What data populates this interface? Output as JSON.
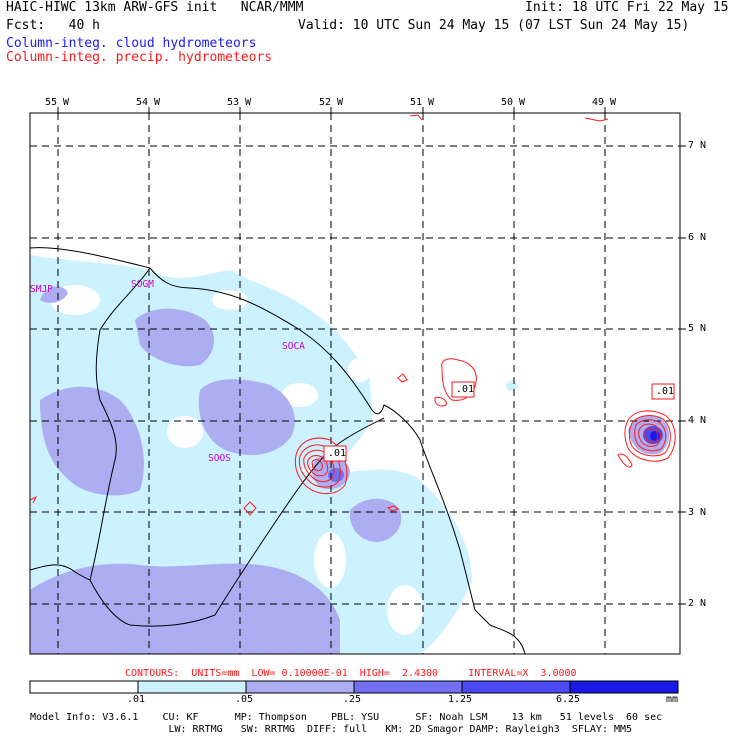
{
  "header": {
    "line1_left": "HAIC-HIWC 13km ARW-GFS init   NCAR/MMM",
    "line1_right": "Init: 18 UTC Fri 22 May 15",
    "line2_left": "Fcst:   40 h",
    "line2_right": "Valid: 10 UTC Sun 24 May 15 (07 LST Sun 24 May 15)",
    "legend_cloud": "Column-integ. cloud hydrometeors",
    "legend_precip": "Column-integ. precip. hydrometeors",
    "cloud_color": "#1a1aff",
    "precip_color": "#ff1a1a"
  },
  "map": {
    "lon_labels": [
      "55 W",
      "54 W",
      "53 W",
      "52 W",
      "51 W",
      "50 W",
      "49 W"
    ],
    "lat_labels": [
      "7 N",
      "6 N",
      "5 N",
      "4 N",
      "3 N",
      "2 N"
    ],
    "place_labels": [
      "SMJP",
      "SOGM",
      "SOCA",
      "SOOS"
    ],
    "contour_labels": [
      ".01",
      ".01",
      ".01"
    ],
    "place_color": "#cc00cc"
  },
  "contour_info": "CONTOURS:  UNITS=mm  LOW= 0.10000E-01  HIGH=  2.4300     INTERVAL=X  3.0000",
  "colorbar": {
    "ticks": [
      ".01",
      ".05",
      ".25",
      "1.25",
      "6.25"
    ],
    "unit": "mm",
    "colors": [
      "#ffffff",
      "#ccf2ff",
      "#adadf2",
      "#7070f0",
      "#4a4af0",
      "#1a1ae6"
    ]
  },
  "model_info": {
    "line1": "Model Info: V3.6.1    CU: KF      MP: Thompson    PBL: YSU      SF: Noah LSM    13 km   51 levels  60 sec",
    "line2": "                       LW: RRTMG   SW: RRTMG  DIFF: full   KM: 2D Smagor DAMP: Rayleigh3  SFLAY: MM5"
  }
}
